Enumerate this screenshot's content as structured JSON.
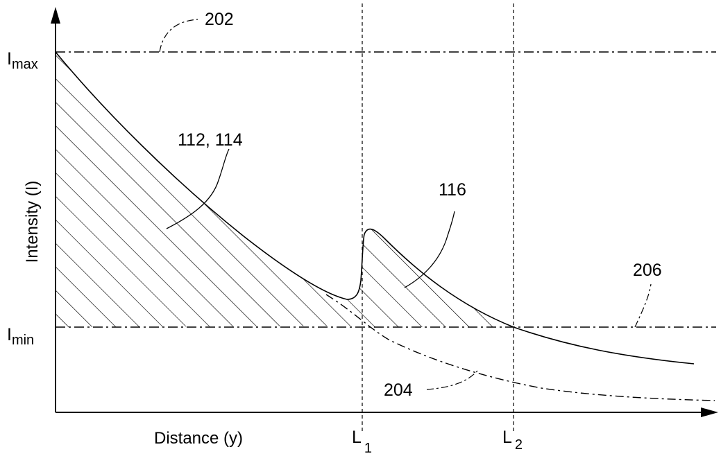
{
  "figure": {
    "y_axis_title": "Intensity (I)",
    "x_axis_title": "Distance (y)",
    "y_ticks": {
      "max": {
        "main": "I",
        "sub": "max"
      },
      "min": {
        "main": "I",
        "sub": "min"
      }
    },
    "x_ticks": {
      "l1": {
        "main": "L",
        "sub": "1"
      },
      "l2": {
        "main": "L",
        "sub": "2"
      }
    },
    "callouts": {
      "max_line": "202",
      "decay_curve": "204",
      "min_line": "206",
      "hatched_region_first": "112, 114",
      "hatched_region_second": "116"
    }
  }
}
